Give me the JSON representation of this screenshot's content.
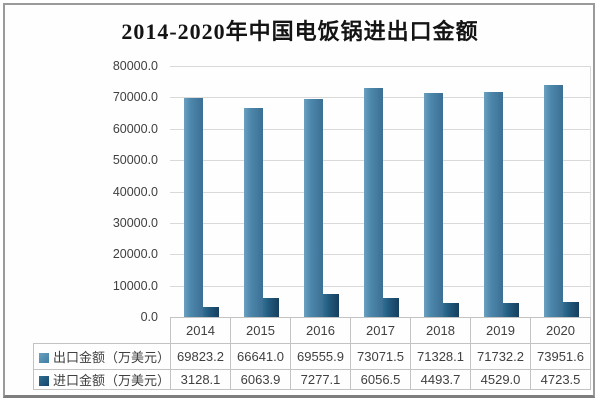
{
  "chart_data": {
    "type": "bar",
    "title": "2014-2020年中国电饭锅进出口金额",
    "categories": [
      "2014",
      "2015",
      "2016",
      "2017",
      "2018",
      "2019",
      "2020"
    ],
    "series": [
      {
        "name": "出口金额（万美元）",
        "color": "#4d87ac",
        "values": [
          69823.2,
          66641.0,
          69555.9,
          73071.5,
          71328.1,
          71732.2,
          73951.6
        ]
      },
      {
        "name": "进口金额（万美元）",
        "color": "#1f597c",
        "values": [
          3128.1,
          6063.9,
          7277.1,
          6056.5,
          4493.7,
          4529.0,
          4723.5
        ]
      }
    ],
    "xlabel": "",
    "ylabel": "",
    "ylim": [
      0,
      80000
    ],
    "ytick_step": 10000,
    "ytick_labels": [
      "0.0",
      "10000.0",
      "20000.0",
      "30000.0",
      "40000.0",
      "50000.0",
      "60000.0",
      "70000.0",
      "80000.0"
    ],
    "grid": true,
    "legend_position": "table-left",
    "colors": {
      "export_bar": "#4d87ac",
      "import_bar": "#1f597c",
      "gridline": "#d9d9d9",
      "table_border": "#c3c3c3",
      "text": "#404040",
      "title": "#141414",
      "frame_border": "#9a9a9a"
    }
  }
}
